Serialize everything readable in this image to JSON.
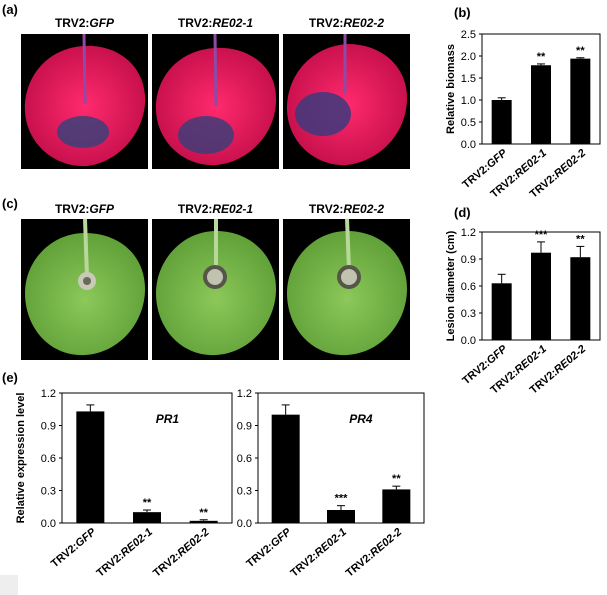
{
  "panels": {
    "a": {
      "label": "(a)",
      "titles": [
        {
          "prefix": "TRV2:",
          "gene": "GFP"
        },
        {
          "prefix": "TRV2:",
          "gene": "RE02-1"
        },
        {
          "prefix": "TRV2:",
          "gene": "RE02-2"
        }
      ]
    },
    "c": {
      "label": "(c)",
      "titles": [
        {
          "prefix": "TRV2:",
          "gene": "GFP"
        },
        {
          "prefix": "TRV2:",
          "gene": "RE02-1"
        },
        {
          "prefix": "TRV2:",
          "gene": "RE02-2"
        }
      ]
    },
    "b": {
      "label": "(b)"
    },
    "d": {
      "label": "(d)"
    },
    "e": {
      "label": "(e)"
    }
  },
  "chart_data": [
    {
      "id": "b",
      "type": "bar",
      "categories": [
        "TRV2:GFP",
        "TRV2:RE02-1",
        "TRV2:RE02-2"
      ],
      "values": [
        1.0,
        1.79,
        1.94
      ],
      "errors": [
        0.05,
        0.03,
        0.02
      ],
      "significance": [
        "",
        "**",
        "**"
      ],
      "ylabel": "Relative biomass",
      "ylim": [
        0,
        2.5
      ],
      "yticks": [
        "0.0",
        "0.5",
        "1.0",
        "1.5",
        "2.0",
        "2.5"
      ],
      "ytick_values": [
        0,
        0.5,
        1.0,
        1.5,
        2.0,
        2.5
      ],
      "title": ""
    },
    {
      "id": "d",
      "type": "bar",
      "categories": [
        "TRV2:GFP",
        "TRV2:RE02-1",
        "TRV2:RE02-2"
      ],
      "values": [
        0.63,
        0.97,
        0.92
      ],
      "errors": [
        0.1,
        0.12,
        0.12
      ],
      "significance": [
        "",
        "***",
        "**"
      ],
      "ylabel": "Lesion diameter (cm)",
      "ylim": [
        0,
        1.2
      ],
      "yticks": [
        "0.0",
        "0.3",
        "0.6",
        "0.9",
        "1.2"
      ],
      "ytick_values": [
        0,
        0.3,
        0.6,
        0.9,
        1.2
      ],
      "title": ""
    },
    {
      "id": "e1",
      "type": "bar",
      "categories": [
        "TRV2:GFP",
        "TRV2:RE02-1",
        "TRV2:RE02-2"
      ],
      "values": [
        1.03,
        0.1,
        0.02
      ],
      "errors": [
        0.06,
        0.02,
        0.01
      ],
      "significance": [
        "",
        "**",
        "**"
      ],
      "ylabel": "Relative expression level",
      "ylim": [
        0,
        1.2
      ],
      "yticks": [
        "0.0",
        "0.3",
        "0.6",
        "0.9",
        "1.2"
      ],
      "ytick_values": [
        0,
        0.3,
        0.6,
        0.9,
        1.2
      ],
      "annotation": "PR1",
      "title": ""
    },
    {
      "id": "e2",
      "type": "bar",
      "categories": [
        "TRV2:GFP",
        "TRV2:RE02-1",
        "TRV2:RE02-2"
      ],
      "values": [
        1.0,
        0.12,
        0.31
      ],
      "errors": [
        0.09,
        0.04,
        0.03
      ],
      "significance": [
        "",
        "***",
        "**"
      ],
      "ylabel": "",
      "ylim": [
        0,
        1.2
      ],
      "yticks": [
        "0.0",
        "0.3",
        "0.6",
        "0.9",
        "1.2"
      ],
      "ytick_values": [
        0,
        0.3,
        0.6,
        0.9,
        1.2
      ],
      "annotation": "PR4",
      "title": ""
    }
  ]
}
